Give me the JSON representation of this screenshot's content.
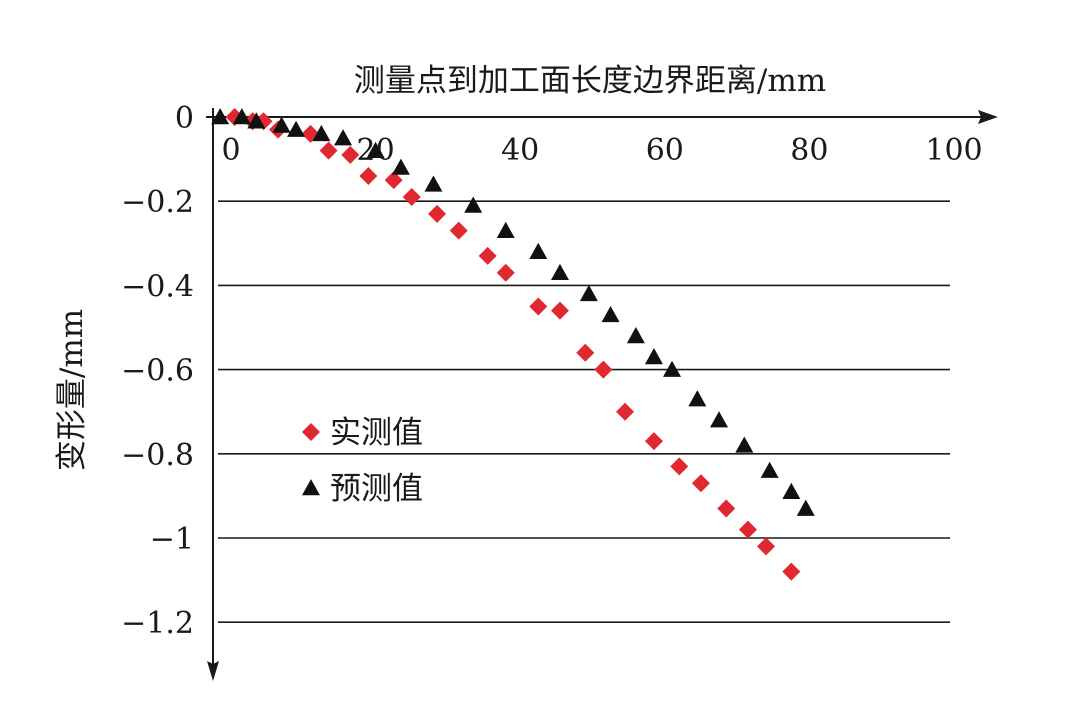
{
  "chart_data": {
    "type": "scatter",
    "xlabel": "测量点到加工面长度边界距离/mm",
    "ylabel": "变形量/mm",
    "xlim": [
      0,
      100
    ],
    "ylim": [
      -1.2,
      0
    ],
    "x_axis_position": "top",
    "x_ticks": [
      0,
      20,
      40,
      60,
      80,
      100
    ],
    "x_tick_labels": [
      "0",
      "20",
      "40",
      "60",
      "80",
      "100"
    ],
    "y_ticks": [
      0,
      -0.2,
      -0.4,
      -0.6,
      -0.8,
      -1,
      -1.2
    ],
    "y_tick_labels": [
      "0",
      "−0.2",
      "−0.4",
      "−0.6",
      "−0.8",
      "−1",
      "−1.2"
    ],
    "grid": "horizontal",
    "legend_position": "center-left",
    "series": [
      {
        "name": "实测值",
        "marker": "diamond",
        "color": "#e02830",
        "points": [
          [
            0.5,
            0.0
          ],
          [
            3.0,
            -0.01
          ],
          [
            4.5,
            -0.01
          ],
          [
            6.5,
            -0.03
          ],
          [
            11.0,
            -0.04
          ],
          [
            13.5,
            -0.08
          ],
          [
            16.5,
            -0.09
          ],
          [
            19.0,
            -0.14
          ],
          [
            22.5,
            -0.15
          ],
          [
            25.0,
            -0.19
          ],
          [
            28.5,
            -0.23
          ],
          [
            31.5,
            -0.27
          ],
          [
            35.5,
            -0.33
          ],
          [
            38.0,
            -0.37
          ],
          [
            42.5,
            -0.45
          ],
          [
            45.5,
            -0.46
          ],
          [
            49.0,
            -0.56
          ],
          [
            51.5,
            -0.6
          ],
          [
            54.5,
            -0.7
          ],
          [
            58.5,
            -0.77
          ],
          [
            62.0,
            -0.83
          ],
          [
            65.0,
            -0.87
          ],
          [
            68.5,
            -0.93
          ],
          [
            71.5,
            -0.98
          ],
          [
            74.0,
            -1.02
          ],
          [
            77.5,
            -1.08
          ]
        ]
      },
      {
        "name": "预测值",
        "marker": "triangle",
        "color": "#111111",
        "points": [
          [
            -1.5,
            0.0
          ],
          [
            1.5,
            0.0
          ],
          [
            3.5,
            -0.01
          ],
          [
            7.0,
            -0.02
          ],
          [
            9.0,
            -0.03
          ],
          [
            12.5,
            -0.04
          ],
          [
            15.5,
            -0.05
          ],
          [
            20.0,
            -0.08
          ],
          [
            23.5,
            -0.12
          ],
          [
            28.0,
            -0.16
          ],
          [
            33.5,
            -0.21
          ],
          [
            38.0,
            -0.27
          ],
          [
            42.5,
            -0.32
          ],
          [
            45.5,
            -0.37
          ],
          [
            49.5,
            -0.42
          ],
          [
            52.5,
            -0.47
          ],
          [
            56.0,
            -0.52
          ],
          [
            58.5,
            -0.57
          ],
          [
            61.0,
            -0.6
          ],
          [
            64.5,
            -0.67
          ],
          [
            67.5,
            -0.72
          ],
          [
            71.0,
            -0.78
          ],
          [
            74.5,
            -0.84
          ],
          [
            77.5,
            -0.89
          ],
          [
            79.5,
            -0.93
          ]
        ]
      }
    ]
  }
}
